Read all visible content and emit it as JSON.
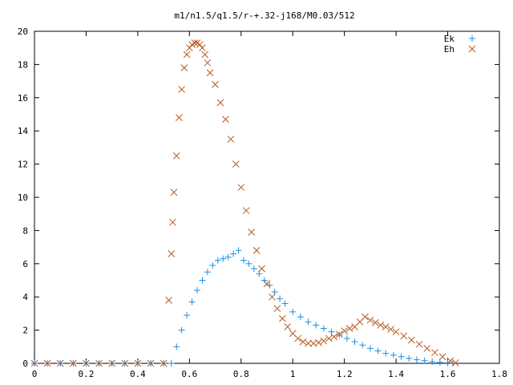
{
  "chart_data": {
    "type": "scatter",
    "title": "m1/n1.5/q1.5/r-+.32-j168/M0.03/512",
    "xlabel": "",
    "ylabel": "",
    "xlim": [
      0,
      1.8
    ],
    "ylim": [
      0,
      20
    ],
    "xticks": [
      "0",
      "0.2",
      "0.4",
      "0.6",
      "0.8",
      "1",
      "1.2",
      "1.4",
      "1.6",
      "1.8"
    ],
    "yticks": [
      "0",
      "2",
      "4",
      "6",
      "8",
      "10",
      "12",
      "14",
      "16",
      "18",
      "20"
    ],
    "legend": "top-right",
    "grid": false,
    "series": [
      {
        "name": "Ek",
        "marker": "plus",
        "color": "#1a8fe6",
        "x": [
          0.0,
          0.05,
          0.1,
          0.15,
          0.2,
          0.25,
          0.3,
          0.35,
          0.4,
          0.45,
          0.5,
          0.53,
          0.55,
          0.57,
          0.59,
          0.61,
          0.63,
          0.65,
          0.67,
          0.69,
          0.71,
          0.73,
          0.75,
          0.77,
          0.79,
          0.81,
          0.83,
          0.85,
          0.87,
          0.89,
          0.91,
          0.93,
          0.95,
          0.97,
          1.0,
          1.03,
          1.06,
          1.09,
          1.12,
          1.15,
          1.18,
          1.21,
          1.24,
          1.27,
          1.3,
          1.33,
          1.36,
          1.39,
          1.42,
          1.45,
          1.48,
          1.51,
          1.54,
          1.57,
          1.6,
          1.62
        ],
        "y": [
          0,
          0,
          0,
          0,
          0,
          0,
          0,
          0,
          0,
          0,
          0,
          0,
          1.0,
          2.0,
          2.9,
          3.7,
          4.4,
          5.0,
          5.5,
          5.9,
          6.2,
          6.3,
          6.4,
          6.6,
          6.8,
          6.2,
          6.0,
          5.7,
          5.4,
          5.0,
          4.7,
          4.3,
          3.9,
          3.6,
          3.1,
          2.8,
          2.5,
          2.3,
          2.1,
          1.9,
          1.7,
          1.5,
          1.3,
          1.1,
          0.9,
          0.75,
          0.6,
          0.5,
          0.4,
          0.3,
          0.22,
          0.16,
          0.1,
          0.06,
          0.03,
          0.01
        ]
      },
      {
        "name": "Eh",
        "marker": "cross",
        "color": "#b85a1e",
        "x": [
          0.0,
          0.05,
          0.1,
          0.15,
          0.2,
          0.25,
          0.3,
          0.35,
          0.4,
          0.45,
          0.5,
          0.52,
          0.53,
          0.535,
          0.54,
          0.55,
          0.56,
          0.57,
          0.58,
          0.59,
          0.6,
          0.61,
          0.62,
          0.63,
          0.64,
          0.65,
          0.66,
          0.67,
          0.68,
          0.7,
          0.72,
          0.74,
          0.76,
          0.78,
          0.8,
          0.82,
          0.84,
          0.86,
          0.88,
          0.9,
          0.92,
          0.94,
          0.96,
          0.98,
          1.0,
          1.02,
          1.04,
          1.06,
          1.08,
          1.1,
          1.12,
          1.14,
          1.16,
          1.18,
          1.2,
          1.22,
          1.24,
          1.26,
          1.28,
          1.3,
          1.32,
          1.34,
          1.36,
          1.38,
          1.4,
          1.43,
          1.46,
          1.49,
          1.52,
          1.55,
          1.58,
          1.61,
          1.63
        ],
        "y": [
          0,
          0,
          0,
          0,
          0,
          0,
          0,
          0,
          0,
          0,
          0,
          3.8,
          6.6,
          8.5,
          10.3,
          12.5,
          14.8,
          16.5,
          17.8,
          18.6,
          19.0,
          19.2,
          19.3,
          19.3,
          19.2,
          19.0,
          18.6,
          18.1,
          17.5,
          16.8,
          15.7,
          14.7,
          13.5,
          12.0,
          10.6,
          9.2,
          7.9,
          6.8,
          5.7,
          4.8,
          4.0,
          3.3,
          2.7,
          2.2,
          1.8,
          1.5,
          1.3,
          1.2,
          1.2,
          1.25,
          1.35,
          1.5,
          1.6,
          1.75,
          1.95,
          2.1,
          2.2,
          2.5,
          2.8,
          2.6,
          2.45,
          2.3,
          2.2,
          2.05,
          1.9,
          1.65,
          1.4,
          1.15,
          0.9,
          0.65,
          0.4,
          0.15,
          0.03
        ]
      }
    ]
  }
}
